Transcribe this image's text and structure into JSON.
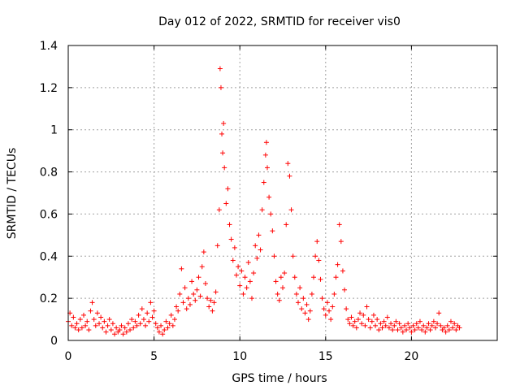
{
  "chart_data": {
    "type": "scatter",
    "title": "Day 012 of 2022, SRMTID for receiver vis0",
    "xlabel": "GPS time / hours",
    "ylabel": "SRMTID / TECUs",
    "xlim": [
      0,
      25
    ],
    "ylim": [
      0,
      1.4
    ],
    "xticks": [
      0,
      5,
      10,
      15,
      20
    ],
    "xtick_labels": [
      "0",
      "5",
      "10",
      "15",
      "20"
    ],
    "yticks": [
      0,
      0.2,
      0.4,
      0.6,
      0.8,
      1.0,
      1.2,
      1.4
    ],
    "ytick_labels": [
      "0",
      "0.2",
      "0.4",
      "0.6",
      "0.8",
      "1",
      "1.2",
      "1.4"
    ],
    "grid": true,
    "marker": "+",
    "color": "#ff0000",
    "series": [
      {
        "name": "SRMTID",
        "points": [
          [
            0.0,
            0.09
          ],
          [
            0.1,
            0.13
          ],
          [
            0.2,
            0.07
          ],
          [
            0.3,
            0.11
          ],
          [
            0.4,
            0.06
          ],
          [
            0.5,
            0.08
          ],
          [
            0.6,
            0.05
          ],
          [
            0.7,
            0.1
          ],
          [
            0.8,
            0.06
          ],
          [
            0.9,
            0.12
          ],
          [
            1.0,
            0.07
          ],
          [
            1.1,
            0.09
          ],
          [
            1.2,
            0.05
          ],
          [
            1.3,
            0.14
          ],
          [
            1.4,
            0.18
          ],
          [
            1.5,
            0.1
          ],
          [
            1.6,
            0.07
          ],
          [
            1.7,
            0.13
          ],
          [
            1.8,
            0.08
          ],
          [
            1.9,
            0.11
          ],
          [
            2.0,
            0.06
          ],
          [
            2.1,
            0.09
          ],
          [
            2.2,
            0.04
          ],
          [
            2.3,
            0.07
          ],
          [
            2.4,
            0.1
          ],
          [
            2.5,
            0.05
          ],
          [
            2.6,
            0.08
          ],
          [
            2.7,
            0.03
          ],
          [
            2.8,
            0.06
          ],
          [
            2.9,
            0.04
          ],
          [
            3.0,
            0.05
          ],
          [
            3.1,
            0.07
          ],
          [
            3.2,
            0.03
          ],
          [
            3.3,
            0.06
          ],
          [
            3.4,
            0.04
          ],
          [
            3.5,
            0.08
          ],
          [
            3.6,
            0.05
          ],
          [
            3.7,
            0.1
          ],
          [
            3.8,
            0.06
          ],
          [
            3.9,
            0.09
          ],
          [
            4.0,
            0.07
          ],
          [
            4.1,
            0.12
          ],
          [
            4.2,
            0.08
          ],
          [
            4.3,
            0.15
          ],
          [
            4.4,
            0.1
          ],
          [
            4.5,
            0.07
          ],
          [
            4.6,
            0.13
          ],
          [
            4.7,
            0.09
          ],
          [
            4.8,
            0.18
          ],
          [
            4.9,
            0.11
          ],
          [
            5.0,
            0.14
          ],
          [
            5.1,
            0.08
          ],
          [
            5.2,
            0.06
          ],
          [
            5.3,
            0.04
          ],
          [
            5.4,
            0.07
          ],
          [
            5.5,
            0.03
          ],
          [
            5.6,
            0.05
          ],
          [
            5.7,
            0.09
          ],
          [
            5.8,
            0.06
          ],
          [
            5.9,
            0.08
          ],
          [
            6.0,
            0.12
          ],
          [
            6.1,
            0.07
          ],
          [
            6.2,
            0.1
          ],
          [
            6.3,
            0.16
          ],
          [
            6.4,
            0.14
          ],
          [
            6.5,
            0.22
          ],
          [
            6.6,
            0.34
          ],
          [
            6.7,
            0.18
          ],
          [
            6.8,
            0.25
          ],
          [
            6.9,
            0.15
          ],
          [
            7.0,
            0.2
          ],
          [
            7.1,
            0.17
          ],
          [
            7.2,
            0.28
          ],
          [
            7.3,
            0.22
          ],
          [
            7.4,
            0.19
          ],
          [
            7.5,
            0.24
          ],
          [
            7.6,
            0.3
          ],
          [
            7.7,
            0.21
          ],
          [
            7.8,
            0.35
          ],
          [
            7.9,
            0.42
          ],
          [
            8.0,
            0.27
          ],
          [
            8.1,
            0.2
          ],
          [
            8.2,
            0.16
          ],
          [
            8.3,
            0.19
          ],
          [
            8.4,
            0.14
          ],
          [
            8.5,
            0.18
          ],
          [
            8.6,
            0.23
          ],
          [
            8.7,
            0.45
          ],
          [
            8.8,
            0.62
          ],
          [
            8.85,
            1.29
          ],
          [
            8.9,
            1.2
          ],
          [
            8.95,
            0.98
          ],
          [
            9.0,
            0.89
          ],
          [
            9.05,
            1.03
          ],
          [
            9.1,
            0.82
          ],
          [
            9.2,
            0.65
          ],
          [
            9.3,
            0.72
          ],
          [
            9.4,
            0.55
          ],
          [
            9.5,
            0.48
          ],
          [
            9.6,
            0.38
          ],
          [
            9.7,
            0.44
          ],
          [
            9.8,
            0.31
          ],
          [
            9.9,
            0.35
          ],
          [
            10.0,
            0.26
          ],
          [
            10.1,
            0.33
          ],
          [
            10.2,
            0.22
          ],
          [
            10.3,
            0.3
          ],
          [
            10.4,
            0.25
          ],
          [
            10.5,
            0.37
          ],
          [
            10.6,
            0.28
          ],
          [
            10.7,
            0.2
          ],
          [
            10.8,
            0.32
          ],
          [
            10.9,
            0.45
          ],
          [
            11.0,
            0.39
          ],
          [
            11.1,
            0.5
          ],
          [
            11.2,
            0.43
          ],
          [
            11.3,
            0.62
          ],
          [
            11.4,
            0.75
          ],
          [
            11.5,
            0.88
          ],
          [
            11.55,
            0.94
          ],
          [
            11.6,
            0.82
          ],
          [
            11.7,
            0.68
          ],
          [
            11.8,
            0.6
          ],
          [
            11.9,
            0.52
          ],
          [
            12.0,
            0.4
          ],
          [
            12.1,
            0.28
          ],
          [
            12.2,
            0.22
          ],
          [
            12.3,
            0.19
          ],
          [
            12.4,
            0.3
          ],
          [
            12.5,
            0.25
          ],
          [
            12.6,
            0.32
          ],
          [
            12.7,
            0.55
          ],
          [
            12.8,
            0.84
          ],
          [
            12.9,
            0.78
          ],
          [
            13.0,
            0.62
          ],
          [
            13.1,
            0.4
          ],
          [
            13.2,
            0.3
          ],
          [
            13.3,
            0.22
          ],
          [
            13.4,
            0.18
          ],
          [
            13.5,
            0.25
          ],
          [
            13.6,
            0.15
          ],
          [
            13.7,
            0.2
          ],
          [
            13.8,
            0.13
          ],
          [
            13.9,
            0.17
          ],
          [
            14.0,
            0.1
          ],
          [
            14.1,
            0.14
          ],
          [
            14.2,
            0.22
          ],
          [
            14.3,
            0.3
          ],
          [
            14.4,
            0.4
          ],
          [
            14.5,
            0.47
          ],
          [
            14.6,
            0.38
          ],
          [
            14.7,
            0.29
          ],
          [
            14.8,
            0.2
          ],
          [
            14.9,
            0.15
          ],
          [
            15.0,
            0.12
          ],
          [
            15.1,
            0.18
          ],
          [
            15.2,
            0.14
          ],
          [
            15.3,
            0.1
          ],
          [
            15.4,
            0.16
          ],
          [
            15.5,
            0.22
          ],
          [
            15.6,
            0.3
          ],
          [
            15.7,
            0.36
          ],
          [
            15.8,
            0.55
          ],
          [
            15.9,
            0.47
          ],
          [
            16.0,
            0.33
          ],
          [
            16.1,
            0.24
          ],
          [
            16.2,
            0.15
          ],
          [
            16.3,
            0.1
          ],
          [
            16.4,
            0.08
          ],
          [
            16.5,
            0.11
          ],
          [
            16.6,
            0.07
          ],
          [
            16.7,
            0.09
          ],
          [
            16.8,
            0.06
          ],
          [
            16.9,
            0.1
          ],
          [
            17.0,
            0.13
          ],
          [
            17.1,
            0.08
          ],
          [
            17.2,
            0.12
          ],
          [
            17.3,
            0.07
          ],
          [
            17.4,
            0.16
          ],
          [
            17.5,
            0.1
          ],
          [
            17.6,
            0.06
          ],
          [
            17.7,
            0.09
          ],
          [
            17.8,
            0.12
          ],
          [
            17.9,
            0.07
          ],
          [
            18.0,
            0.1
          ],
          [
            18.1,
            0.05
          ],
          [
            18.2,
            0.08
          ],
          [
            18.3,
            0.06
          ],
          [
            18.4,
            0.09
          ],
          [
            18.5,
            0.07
          ],
          [
            18.6,
            0.11
          ],
          [
            18.7,
            0.06
          ],
          [
            18.8,
            0.08
          ],
          [
            18.9,
            0.05
          ],
          [
            19.0,
            0.07
          ],
          [
            19.1,
            0.09
          ],
          [
            19.2,
            0.05
          ],
          [
            19.3,
            0.08
          ],
          [
            19.4,
            0.06
          ],
          [
            19.5,
            0.04
          ],
          [
            19.6,
            0.07
          ],
          [
            19.7,
            0.05
          ],
          [
            19.8,
            0.08
          ],
          [
            19.9,
            0.06
          ],
          [
            20.0,
            0.04
          ],
          [
            20.1,
            0.07
          ],
          [
            20.2,
            0.05
          ],
          [
            20.3,
            0.08
          ],
          [
            20.4,
            0.06
          ],
          [
            20.5,
            0.09
          ],
          [
            20.6,
            0.05
          ],
          [
            20.7,
            0.07
          ],
          [
            20.8,
            0.04
          ],
          [
            20.9,
            0.06
          ],
          [
            21.0,
            0.08
          ],
          [
            21.1,
            0.05
          ],
          [
            21.2,
            0.07
          ],
          [
            21.3,
            0.09
          ],
          [
            21.4,
            0.06
          ],
          [
            21.5,
            0.08
          ],
          [
            21.6,
            0.13
          ],
          [
            21.7,
            0.07
          ],
          [
            21.8,
            0.05
          ],
          [
            21.9,
            0.06
          ],
          [
            22.0,
            0.04
          ],
          [
            22.1,
            0.07
          ],
          [
            22.2,
            0.05
          ],
          [
            22.3,
            0.09
          ],
          [
            22.4,
            0.06
          ],
          [
            22.5,
            0.08
          ],
          [
            22.6,
            0.05
          ],
          [
            22.7,
            0.07
          ],
          [
            22.8,
            0.06
          ]
        ]
      }
    ]
  }
}
